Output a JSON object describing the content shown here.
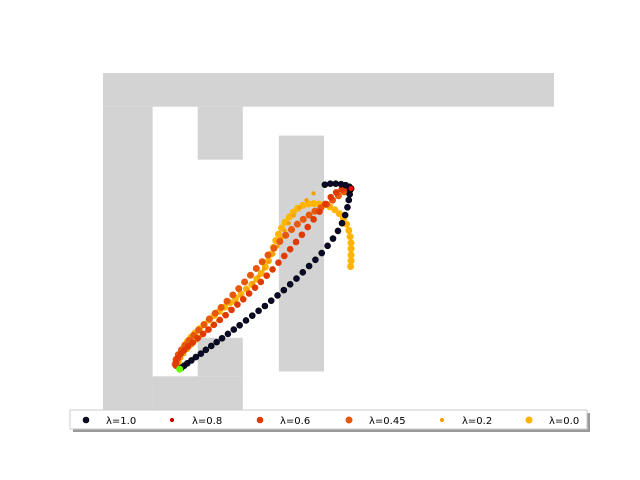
{
  "chart_data": {
    "type": "scatter",
    "title": "",
    "xlabel": "",
    "ylabel": "",
    "xlim": [
      0,
      10
    ],
    "ylim": [
      0,
      7
    ],
    "grid": false,
    "axes_visible": false,
    "legend_position": "bottom",
    "legend_columns": 6,
    "obstacle_color": "#d3d3d3",
    "obstacles": [
      {
        "name": "outer-top-band",
        "x0": 0,
        "x1": 10,
        "y0": 6.3,
        "y1": 7.0
      },
      {
        "name": "left-column",
        "x0": 0,
        "x1": 1.1,
        "y0": 0,
        "y1": 6.3
      },
      {
        "name": "lower-left-block",
        "x0": 1.1,
        "x1": 3.1,
        "y0": 0,
        "y1": 0.7
      },
      {
        "name": "lower-center-pillar",
        "x0": 2.1,
        "x1": 3.1,
        "y0": 0.7,
        "y1": 1.5
      },
      {
        "name": "upper-center-block",
        "x0": 2.1,
        "x1": 3.1,
        "y0": 5.2,
        "y1": 6.3
      },
      {
        "name": "right-block",
        "x0": 3.9,
        "x1": 4.9,
        "y0": 0.8,
        "y1": 5.7
      }
    ],
    "start": {
      "x": 1.7,
      "y": 0.85,
      "color": "#66ff00"
    },
    "goal": {
      "x": 5.5,
      "y": 4.6,
      "color": "#ff0000"
    },
    "series": [
      {
        "name": "λ=1.0",
        "color": "#0a0a2a",
        "edge": "#000000",
        "size": 3.0,
        "points": [
          [
            1.7,
            0.85
          ],
          [
            1.74,
            0.88
          ],
          [
            1.8,
            0.92
          ],
          [
            1.87,
            0.97
          ],
          [
            1.96,
            1.03
          ],
          [
            2.06,
            1.1
          ],
          [
            2.17,
            1.17
          ],
          [
            2.28,
            1.25
          ],
          [
            2.4,
            1.33
          ],
          [
            2.52,
            1.41
          ],
          [
            2.64,
            1.49
          ],
          [
            2.77,
            1.58
          ],
          [
            2.9,
            1.67
          ],
          [
            3.03,
            1.76
          ],
          [
            3.17,
            1.86
          ],
          [
            3.31,
            1.96
          ],
          [
            3.45,
            2.06
          ],
          [
            3.59,
            2.16
          ],
          [
            3.73,
            2.27
          ],
          [
            3.87,
            2.38
          ],
          [
            4.01,
            2.49
          ],
          [
            4.15,
            2.61
          ],
          [
            4.29,
            2.73
          ],
          [
            4.43,
            2.86
          ],
          [
            4.57,
            2.99
          ],
          [
            4.71,
            3.12
          ],
          [
            4.85,
            3.26
          ],
          [
            4.98,
            3.41
          ],
          [
            5.1,
            3.56
          ],
          [
            5.21,
            3.72
          ],
          [
            5.3,
            3.88
          ],
          [
            5.37,
            4.05
          ],
          [
            5.42,
            4.21
          ],
          [
            5.45,
            4.36
          ],
          [
            5.47,
            4.48
          ],
          [
            5.48,
            4.57
          ],
          [
            5.5,
            4.6
          ],
          [
            5.46,
            4.64
          ],
          [
            5.38,
            4.67
          ],
          [
            5.28,
            4.69
          ],
          [
            5.16,
            4.7
          ],
          [
            5.04,
            4.7
          ],
          [
            4.92,
            4.68
          ]
        ]
      },
      {
        "name": "λ=0.8",
        "color": "#cc0000",
        "edge": "#cc0000",
        "size": 1.8,
        "points": [
          [
            1.7,
            0.85
          ],
          [
            1.74,
            0.88
          ],
          [
            1.8,
            0.92
          ],
          [
            1.87,
            0.97
          ],
          [
            1.96,
            1.03
          ],
          [
            2.06,
            1.1
          ],
          [
            2.17,
            1.17
          ],
          [
            2.28,
            1.25
          ],
          [
            2.4,
            1.33
          ],
          [
            2.52,
            1.41
          ],
          [
            2.64,
            1.49
          ],
          [
            2.77,
            1.58
          ],
          [
            2.9,
            1.67
          ],
          [
            3.03,
            1.76
          ],
          [
            3.17,
            1.86
          ],
          [
            3.31,
            1.96
          ],
          [
            3.45,
            2.06
          ],
          [
            3.59,
            2.16
          ],
          [
            3.73,
            2.27
          ],
          [
            3.87,
            2.38
          ],
          [
            4.01,
            2.49
          ],
          [
            4.15,
            2.61
          ],
          [
            4.29,
            2.73
          ],
          [
            4.43,
            2.86
          ],
          [
            4.57,
            2.99
          ],
          [
            4.71,
            3.12
          ],
          [
            4.85,
            3.26
          ],
          [
            4.98,
            3.41
          ],
          [
            5.1,
            3.56
          ],
          [
            5.21,
            3.72
          ],
          [
            5.3,
            3.88
          ],
          [
            5.37,
            4.05
          ],
          [
            5.42,
            4.21
          ],
          [
            5.45,
            4.36
          ],
          [
            5.47,
            4.48
          ],
          [
            5.48,
            4.57
          ],
          [
            5.5,
            4.6
          ],
          [
            5.46,
            4.64
          ],
          [
            5.38,
            4.67
          ],
          [
            5.28,
            4.69
          ],
          [
            5.16,
            4.7
          ],
          [
            5.04,
            4.7
          ],
          [
            4.92,
            4.68
          ]
        ]
      },
      {
        "name": "λ=0.6",
        "color": "#e03a00",
        "edge": "#e03a00",
        "size": 3.0,
        "points": [
          [
            1.62,
            0.92
          ],
          [
            1.62,
            1.0
          ],
          [
            1.66,
            1.08
          ],
          [
            1.72,
            1.16
          ],
          [
            1.8,
            1.24
          ],
          [
            1.89,
            1.32
          ],
          [
            1.99,
            1.4
          ],
          [
            2.1,
            1.49
          ],
          [
            2.22,
            1.58
          ],
          [
            2.34,
            1.67
          ],
          [
            2.46,
            1.77
          ],
          [
            2.59,
            1.87
          ],
          [
            2.72,
            1.97
          ],
          [
            2.85,
            2.08
          ],
          [
            2.98,
            2.19
          ],
          [
            3.11,
            2.3
          ],
          [
            3.24,
            2.42
          ],
          [
            3.37,
            2.54
          ],
          [
            3.5,
            2.66
          ],
          [
            3.63,
            2.79
          ],
          [
            3.76,
            2.92
          ],
          [
            3.89,
            3.06
          ],
          [
            4.02,
            3.2
          ],
          [
            4.15,
            3.34
          ],
          [
            4.28,
            3.49
          ],
          [
            4.41,
            3.64
          ],
          [
            4.54,
            3.8
          ],
          [
            4.67,
            3.96
          ],
          [
            4.8,
            4.12
          ],
          [
            4.93,
            4.28
          ],
          [
            5.05,
            4.42
          ],
          [
            5.17,
            4.52
          ],
          [
            5.29,
            4.58
          ],
          [
            5.4,
            4.6
          ]
        ]
      },
      {
        "name": "λ=0.45",
        "color": "#e8580a",
        "edge": "#e8580a",
        "size": 3.2,
        "points": [
          [
            1.6,
            0.95
          ],
          [
            1.62,
            1.05
          ],
          [
            1.67,
            1.15
          ],
          [
            1.74,
            1.25
          ],
          [
            1.82,
            1.35
          ],
          [
            1.91,
            1.45
          ],
          [
            2.01,
            1.55
          ],
          [
            2.12,
            1.66
          ],
          [
            2.24,
            1.77
          ],
          [
            2.36,
            1.89
          ],
          [
            2.49,
            2.01
          ],
          [
            2.62,
            2.13
          ],
          [
            2.75,
            2.26
          ],
          [
            2.88,
            2.39
          ],
          [
            3.01,
            2.52
          ],
          [
            3.14,
            2.66
          ],
          [
            3.27,
            2.8
          ],
          [
            3.4,
            2.94
          ],
          [
            3.53,
            3.08
          ],
          [
            3.66,
            3.22
          ],
          [
            3.79,
            3.36
          ],
          [
            3.92,
            3.5
          ],
          [
            4.05,
            3.63
          ],
          [
            4.18,
            3.75
          ],
          [
            4.31,
            3.86
          ],
          [
            4.44,
            3.96
          ],
          [
            4.57,
            4.05
          ],
          [
            4.7,
            4.13
          ],
          [
            4.83,
            4.2
          ],
          [
            4.96,
            4.27
          ],
          [
            5.09,
            4.36
          ],
          [
            5.22,
            4.45
          ],
          [
            5.35,
            4.53
          ],
          [
            5.5,
            4.6
          ]
        ]
      },
      {
        "name": "λ=0.2",
        "color": "#f5a000",
        "edge": "#f5a000",
        "size": 1.8,
        "points": [
          [
            1.68,
            0.92
          ],
          [
            1.7,
            1.0
          ],
          [
            1.74,
            1.08
          ],
          [
            1.8,
            1.16
          ],
          [
            1.88,
            1.25
          ],
          [
            1.97,
            1.34
          ],
          [
            2.07,
            1.44
          ],
          [
            2.18,
            1.54
          ],
          [
            2.3,
            1.64
          ],
          [
            2.42,
            1.75
          ],
          [
            2.55,
            1.86
          ],
          [
            2.68,
            1.98
          ],
          [
            2.81,
            2.1
          ],
          [
            2.94,
            2.23
          ],
          [
            3.07,
            2.36
          ],
          [
            3.2,
            2.5
          ],
          [
            3.33,
            2.64
          ],
          [
            3.45,
            2.78
          ],
          [
            3.57,
            2.93
          ],
          [
            3.68,
            3.08
          ],
          [
            3.78,
            3.24
          ],
          [
            3.87,
            3.4
          ],
          [
            3.95,
            3.56
          ],
          [
            4.03,
            3.72
          ],
          [
            4.12,
            3.88
          ],
          [
            4.23,
            4.04
          ],
          [
            4.36,
            4.2
          ],
          [
            4.51,
            4.36
          ],
          [
            4.67,
            4.5
          ]
        ]
      },
      {
        "name": "λ=0.0",
        "color": "#ffb400",
        "edge": "#ffb400",
        "size": 3.2,
        "points": [
          [
            1.65,
            0.92
          ],
          [
            1.66,
            1.02
          ],
          [
            1.69,
            1.12
          ],
          [
            1.74,
            1.22
          ],
          [
            1.8,
            1.32
          ],
          [
            1.87,
            1.42
          ],
          [
            1.95,
            1.51
          ],
          [
            2.04,
            1.6
          ],
          [
            2.14,
            1.69
          ],
          [
            2.24,
            1.78
          ],
          [
            2.35,
            1.87
          ],
          [
            2.46,
            1.96
          ],
          [
            2.58,
            2.05
          ],
          [
            2.7,
            2.14
          ],
          [
            2.82,
            2.23
          ],
          [
            2.94,
            2.32
          ],
          [
            3.06,
            2.41
          ],
          [
            3.18,
            2.51
          ],
          [
            3.3,
            2.61
          ],
          [
            3.41,
            2.72
          ],
          [
            3.51,
            2.84
          ],
          [
            3.6,
            2.97
          ],
          [
            3.67,
            3.1
          ],
          [
            3.73,
            3.24
          ],
          [
            3.78,
            3.38
          ],
          [
            3.83,
            3.52
          ],
          [
            3.89,
            3.65
          ],
          [
            3.96,
            3.78
          ],
          [
            4.04,
            3.9
          ],
          [
            4.13,
            4.01
          ],
          [
            4.22,
            4.11
          ],
          [
            4.32,
            4.19
          ],
          [
            4.43,
            4.25
          ],
          [
            4.55,
            4.28
          ],
          [
            4.67,
            4.29
          ],
          [
            4.79,
            4.28
          ],
          [
            4.91,
            4.26
          ],
          [
            5.03,
            4.22
          ],
          [
            5.14,
            4.16
          ],
          [
            5.24,
            4.08
          ],
          [
            5.33,
            3.98
          ],
          [
            5.4,
            3.86
          ],
          [
            5.45,
            3.73
          ],
          [
            5.48,
            3.6
          ],
          [
            5.5,
            3.47
          ],
          [
            5.5,
            3.35
          ],
          [
            5.5,
            3.22
          ],
          [
            5.5,
            3.1
          ],
          [
            5.49,
            2.98
          ]
        ]
      }
    ]
  }
}
